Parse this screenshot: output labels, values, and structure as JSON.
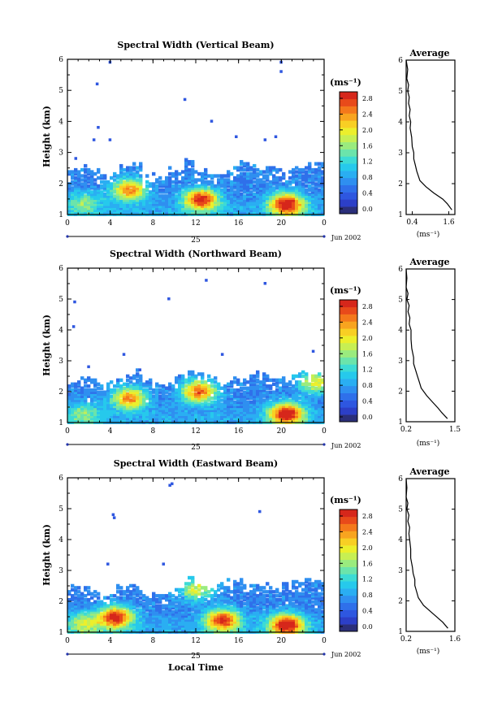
{
  "colors": {
    "scale": [
      "#2b2f7a",
      "#2c3fc7",
      "#2e57e0",
      "#2f70ea",
      "#2f8ff0",
      "#2aaef2",
      "#26c9ec",
      "#3ddbd5",
      "#6be4ab",
      "#9aeb7e",
      "#c7ef53",
      "#ecef2c",
      "#f8cf24",
      "#f8a41f",
      "#f4781b",
      "#e84a1a",
      "#d6271b"
    ]
  },
  "colorbar": {
    "unit_label": "(ms⁻¹)",
    "tick_labels": [
      "2.8",
      "2.4",
      "2.0",
      "1.6",
      "1.2",
      "0.8",
      "0.4",
      "0.0"
    ]
  },
  "panels": [
    {
      "title": "Spectral Width (Vertical Beam)",
      "ylabel": "Height (km)",
      "y_ticks": [
        "1",
        "2",
        "3",
        "4",
        "5",
        "6"
      ],
      "x_ticks": [
        "0",
        "4",
        "8",
        "12",
        "16",
        "20",
        "0"
      ],
      "day_label": "25",
      "month_label": "Jun 2002",
      "avg_title": "Average",
      "avg_x_ticks": [
        "0.4",
        "1.6"
      ],
      "avg_xlabel": "(ms⁻¹)",
      "avg_y_ticks": [
        "1",
        "2",
        "3",
        "4",
        "5",
        "6"
      ]
    },
    {
      "title": "Spectral Width (Northward Beam)",
      "ylabel": "Height (km)",
      "y_ticks": [
        "1",
        "2",
        "3",
        "4",
        "5",
        "6"
      ],
      "x_ticks": [
        "0",
        "4",
        "8",
        "12",
        "16",
        "20",
        "0"
      ],
      "day_label": "25",
      "month_label": "Jun 2002",
      "avg_title": "Average",
      "avg_x_ticks": [
        "0.2",
        "1.5"
      ],
      "avg_xlabel": "(ms⁻¹)",
      "avg_y_ticks": [
        "1",
        "2",
        "3",
        "4",
        "5",
        "6"
      ]
    },
    {
      "title": "Spectral Width (Eastward Beam)",
      "ylabel": "Height (km)",
      "y_ticks": [
        "1",
        "2",
        "3",
        "4",
        "5",
        "6"
      ],
      "x_ticks": [
        "0",
        "4",
        "8",
        "12",
        "16",
        "20",
        "0"
      ],
      "day_label": "25",
      "month_label": "Jun 2002",
      "xlabel": "Local Time",
      "avg_title": "Average",
      "avg_x_ticks": [
        "0.2",
        "1.6"
      ],
      "avg_xlabel": "(ms⁻¹)",
      "avg_y_ticks": [
        "1",
        "2",
        "3",
        "4",
        "5",
        "6"
      ]
    }
  ],
  "chart_data": [
    {
      "type": "heatmap",
      "title": "Spectral Width (Vertical Beam)",
      "xlabel": "",
      "ylabel": "Height (km)",
      "xlim_hours": [
        0,
        24
      ],
      "ylim": [
        1,
        6
      ],
      "zlim": [
        0,
        3.0
      ],
      "cloud_top_km": [
        2.5,
        2.5,
        2.4,
        2.3,
        2.3,
        2.6,
        2.6,
        2.2,
        2.2,
        2.4,
        2.4,
        2.7,
        2.4,
        2.2,
        2.3,
        2.5,
        2.6,
        2.6,
        2.5,
        2.5,
        2.3,
        2.5,
        2.6,
        2.7
      ],
      "hot_spots": [
        {
          "hour": 5.8,
          "km": 1.8,
          "value": 2.4
        },
        {
          "hour": 12.5,
          "km": 1.5,
          "value": 2.8
        },
        {
          "hour": 20.5,
          "km": 1.35,
          "value": 2.9
        },
        {
          "hour": 1.5,
          "km": 1.4,
          "value": 1.4
        }
      ],
      "isolated_points": [
        [
          4,
          5.9
        ],
        [
          20,
          5.9
        ],
        [
          20,
          5.6
        ],
        [
          2.8,
          5.2
        ],
        [
          11,
          4.7
        ],
        [
          2.9,
          3.8
        ],
        [
          13.5,
          4.0
        ],
        [
          15.8,
          3.5
        ],
        [
          18.5,
          3.4
        ],
        [
          19.5,
          3.5
        ],
        [
          2.5,
          3.4
        ],
        [
          4,
          3.4
        ],
        [
          0.8,
          2.8
        ]
      ]
    },
    {
      "type": "line",
      "title": "Average",
      "xlabel": "(ms⁻¹)",
      "ylabel": "",
      "xlim": [
        0.2,
        1.8
      ],
      "ylim": [
        1,
        6
      ],
      "x": [
        1.7,
        1.55,
        1.4,
        1.1,
        0.85,
        0.65,
        0.55,
        0.5,
        0.45,
        0.45,
        0.4,
        0.38,
        0.33,
        0.35,
        0.3,
        0.33,
        0.28,
        0.3,
        0.25,
        0.28,
        0.22,
        0.25,
        0.2
      ],
      "y": [
        1.15,
        1.35,
        1.5,
        1.7,
        1.9,
        2.1,
        2.4,
        2.6,
        2.8,
        3.0,
        3.2,
        3.5,
        3.8,
        4.0,
        4.2,
        4.4,
        4.6,
        4.8,
        5.0,
        5.2,
        5.4,
        5.7,
        6.0
      ]
    },
    {
      "type": "heatmap",
      "title": "Spectral Width (Northward Beam)",
      "xlabel": "",
      "ylabel": "Height (km)",
      "xlim_hours": [
        0,
        24
      ],
      "ylim": [
        1,
        6
      ],
      "zlim": [
        0,
        3.0
      ],
      "cloud_top_km": [
        2.4,
        2.4,
        2.3,
        2.3,
        2.4,
        2.5,
        2.6,
        2.3,
        2.2,
        2.3,
        2.5,
        2.6,
        2.6,
        2.4,
        2.3,
        2.4,
        2.4,
        2.6,
        2.5,
        2.4,
        2.4,
        2.5,
        2.6,
        2.6
      ],
      "hot_spots": [
        {
          "hour": 5.8,
          "km": 1.8,
          "value": 2.4
        },
        {
          "hour": 12.3,
          "km": 2.0,
          "value": 2.6
        },
        {
          "hour": 20.5,
          "km": 1.3,
          "value": 2.9
        },
        {
          "hour": 1.5,
          "km": 1.3,
          "value": 1.4
        },
        {
          "hour": 23.2,
          "km": 2.3,
          "value": 1.9
        }
      ],
      "isolated_points": [
        [
          13,
          5.6
        ],
        [
          18.5,
          5.5
        ],
        [
          0.7,
          4.9
        ],
        [
          9.5,
          5.0
        ],
        [
          0.6,
          4.1
        ],
        [
          14.5,
          3.2
        ],
        [
          23,
          3.3
        ],
        [
          5.3,
          3.2
        ],
        [
          2,
          2.8
        ],
        [
          6.8,
          2.7
        ]
      ]
    },
    {
      "type": "line",
      "title": "Average",
      "xlabel": "(ms⁻¹)",
      "ylabel": "",
      "xlim": [
        0.2,
        1.5
      ],
      "ylim": [
        1,
        6
      ],
      "x": [
        1.3,
        1.15,
        1.05,
        0.9,
        0.75,
        0.6,
        0.55,
        0.5,
        0.45,
        0.4,
        0.4,
        0.35,
        0.33,
        0.33,
        0.28,
        0.3,
        0.25,
        0.28,
        0.22,
        0.25,
        0.2,
        0.22,
        0.2
      ],
      "y": [
        1.1,
        1.3,
        1.45,
        1.65,
        1.85,
        2.1,
        2.3,
        2.5,
        2.7,
        2.9,
        3.1,
        3.4,
        3.7,
        4.0,
        4.2,
        4.4,
        4.6,
        4.8,
        5.0,
        5.2,
        5.4,
        5.7,
        6.0
      ]
    },
    {
      "type": "heatmap",
      "title": "Spectral Width (Eastward Beam)",
      "xlabel": "Local Time",
      "ylabel": "Height (km)",
      "xlim_hours": [
        0,
        24
      ],
      "ylim": [
        1,
        6
      ],
      "zlim": [
        0,
        3.0
      ],
      "cloud_top_km": [
        2.5,
        2.5,
        2.3,
        2.2,
        2.4,
        2.5,
        2.4,
        2.2,
        2.2,
        2.3,
        2.5,
        2.7,
        2.5,
        2.4,
        2.5,
        2.6,
        2.6,
        2.6,
        2.5,
        2.4,
        2.5,
        2.6,
        2.7,
        2.7
      ],
      "hot_spots": [
        {
          "hour": 4.5,
          "km": 1.5,
          "value": 2.8
        },
        {
          "hour": 14.5,
          "km": 1.4,
          "value": 2.7
        },
        {
          "hour": 20.5,
          "km": 1.25,
          "value": 2.9
        },
        {
          "hour": 1.5,
          "km": 1.3,
          "value": 1.6
        },
        {
          "hour": 12,
          "km": 2.4,
          "value": 1.8
        }
      ],
      "isolated_points": [
        [
          9.8,
          5.8
        ],
        [
          9.6,
          5.75
        ],
        [
          4.3,
          4.8
        ],
        [
          4.4,
          4.7
        ],
        [
          18,
          4.9
        ],
        [
          9,
          3.2
        ],
        [
          3.8,
          3.2
        ]
      ]
    },
    {
      "type": "line",
      "title": "Average",
      "xlabel": "(ms⁻¹)",
      "ylabel": "",
      "xlim": [
        0.2,
        1.6
      ],
      "ylim": [
        1,
        6
      ],
      "x": [
        1.4,
        1.25,
        1.1,
        0.9,
        0.7,
        0.55,
        0.5,
        0.45,
        0.45,
        0.4,
        0.38,
        0.33,
        0.33,
        0.3,
        0.28,
        0.3,
        0.25,
        0.28,
        0.22,
        0.25,
        0.2,
        0.22,
        0.2
      ],
      "y": [
        1.1,
        1.3,
        1.45,
        1.65,
        1.85,
        2.1,
        2.3,
        2.5,
        2.7,
        2.9,
        3.1,
        3.4,
        3.7,
        4.0,
        4.2,
        4.4,
        4.6,
        4.8,
        5.0,
        5.2,
        5.4,
        5.7,
        6.0
      ]
    }
  ]
}
